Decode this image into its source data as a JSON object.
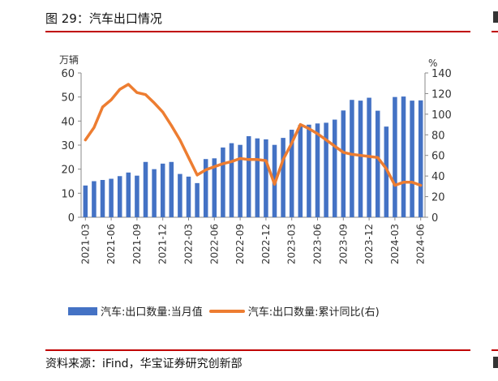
{
  "header": {
    "title": "图 29：汽车出口情况"
  },
  "footer": {
    "source": "资料来源：iFind，华宝证券研究创新部"
  },
  "legend": {
    "bar_label": "汽车:出口数量:当月值",
    "line_label": "汽车:出口数量:累计同比(右)"
  },
  "colors": {
    "bar": "#4472c4",
    "line": "#ed7d31",
    "rule": "#c00000"
  },
  "chart_data": {
    "type": "bar",
    "title": "",
    "left_axis": {
      "unit": "万辆",
      "min": 0,
      "max": 60,
      "ticks": [
        0,
        10,
        20,
        30,
        40,
        50,
        60
      ]
    },
    "right_axis": {
      "unit": "%",
      "min": 0,
      "max": 140,
      "ticks": [
        0,
        20,
        40,
        60,
        80,
        100,
        120,
        140
      ]
    },
    "x_tick_labels": [
      "2021-03",
      "2021-06",
      "2021-09",
      "2021-12",
      "2022-03",
      "2022-06",
      "2022-09",
      "2022-12",
      "2023-03",
      "2023-06",
      "2023-09",
      "2023-12",
      "2024-03",
      "2024-06"
    ],
    "x_tick_indices": [
      0,
      3,
      6,
      9,
      12,
      15,
      18,
      21,
      24,
      27,
      30,
      33,
      36,
      39
    ],
    "categories": [
      "2021-03",
      "2021-04",
      "2021-05",
      "2021-06",
      "2021-07",
      "2021-08",
      "2021-09",
      "2021-10",
      "2021-11",
      "2021-12",
      "2022-01",
      "2022-02",
      "2022-03",
      "2022-04",
      "2022-05",
      "2022-06",
      "2022-07",
      "2022-08",
      "2022-09",
      "2022-10",
      "2022-11",
      "2022-12",
      "2023-01",
      "2023-02",
      "2023-03",
      "2023-04",
      "2023-05",
      "2023-06",
      "2023-07",
      "2023-08",
      "2023-09",
      "2023-10",
      "2023-11",
      "2023-12",
      "2024-01",
      "2024-02",
      "2024-03",
      "2024-04",
      "2024-05",
      "2024-06"
    ],
    "series": [
      {
        "name": "汽车:出口数量:当月值",
        "axis": "left",
        "kind": "bar",
        "values": [
          13.2,
          15.0,
          15.5,
          16.0,
          17.1,
          18.6,
          17.3,
          23.0,
          20.0,
          22.3,
          23.0,
          18.0,
          16.9,
          14.2,
          24.2,
          24.5,
          29.0,
          30.8,
          30.1,
          33.7,
          32.8,
          32.4,
          30.1,
          33.0,
          36.4,
          38.4,
          38.5,
          39.0,
          39.3,
          40.6,
          44.4,
          48.8,
          48.5,
          49.7,
          44.3,
          37.7,
          50.0,
          50.2,
          48.5,
          48.6
        ]
      },
      {
        "name": "汽车:出口数量:累计同比(右)",
        "axis": "right",
        "kind": "line",
        "values": [
          75,
          87,
          107,
          114,
          124,
          129,
          121,
          119,
          111,
          102,
          89,
          75,
          58,
          41,
          46,
          49,
          52,
          54,
          57,
          56,
          56,
          55,
          32,
          56,
          72,
          90,
          86,
          81,
          75,
          69,
          63,
          61,
          60,
          59,
          58,
          47,
          31,
          34,
          34,
          31
        ]
      }
    ]
  }
}
